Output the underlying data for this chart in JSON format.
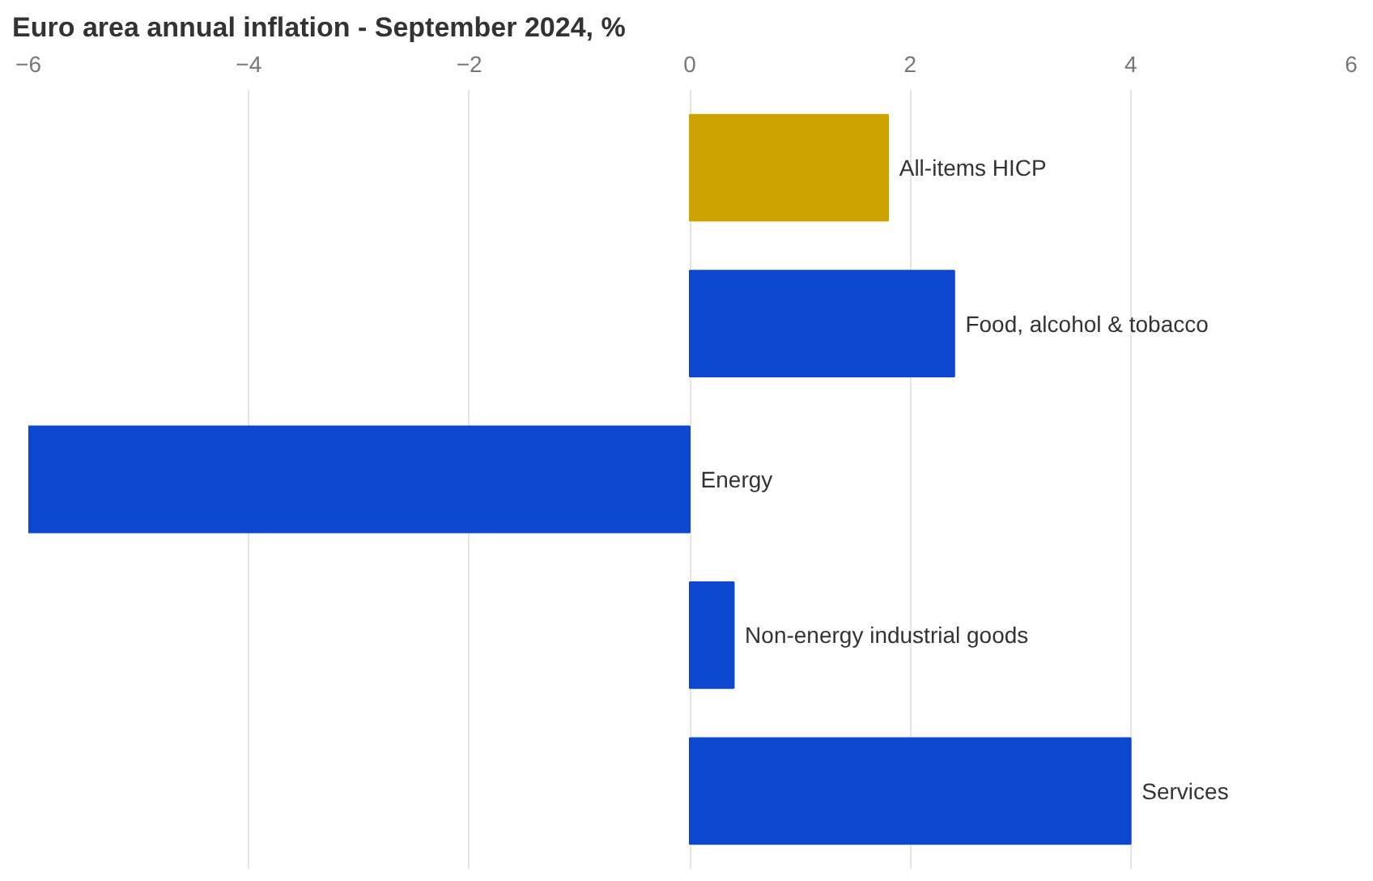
{
  "chart_data": {
    "type": "bar",
    "orientation": "horizontal",
    "title": "Euro area annual inflation - September 2024, %",
    "categories": [
      "All-items HICP",
      "Food, alcohol & tobacco",
      "Energy",
      "Non-energy industrial goods",
      "Services"
    ],
    "values": [
      1.8,
      2.4,
      -6.0,
      0.4,
      4.0
    ],
    "colors": [
      "#cca300",
      "#0d47cf",
      "#0d47cf",
      "#0d47cf",
      "#0d47cf"
    ],
    "xlim": [
      -6,
      6
    ],
    "xticks": [
      -6,
      -4,
      -2,
      0,
      2,
      4,
      6
    ],
    "grid": "x",
    "tick_labels": "x"
  }
}
